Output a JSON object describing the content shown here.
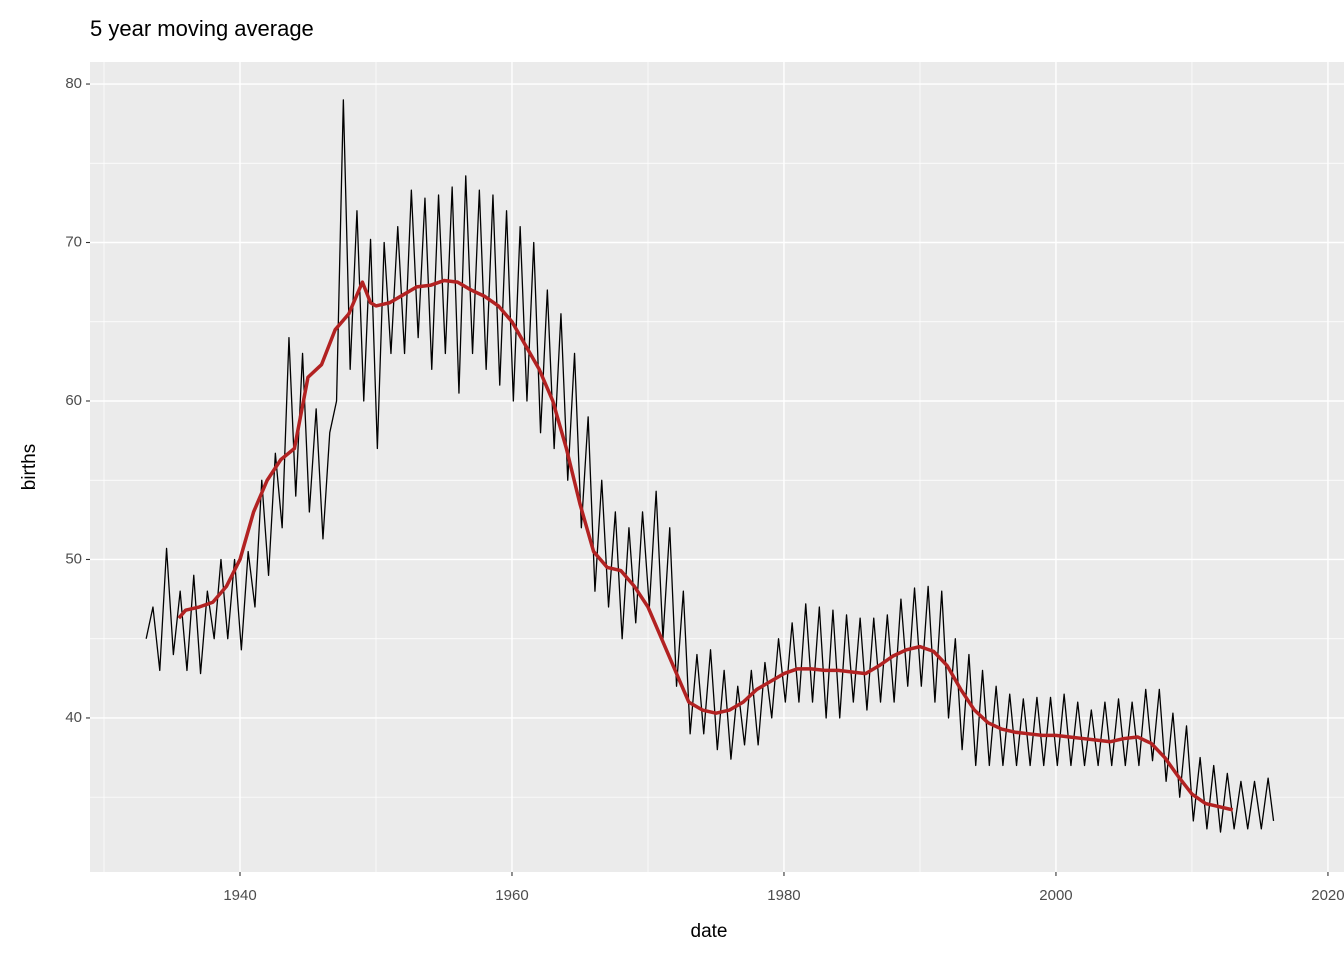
{
  "chart_data": {
    "type": "line",
    "title": "5 year moving average",
    "x_label": "date",
    "y_label": "births",
    "xlim": [
      1928.97,
      2021.18
    ],
    "ylim": [
      30.28,
      81.39
    ],
    "xticks": [
      1940,
      1960,
      1980,
      2000,
      2020
    ],
    "yticks": [
      40,
      50,
      60,
      70,
      80
    ],
    "grid": true,
    "series": [
      {
        "color": "#000000",
        "x": [
          1933.1,
          1933.6,
          1934.1,
          1934.6,
          1935.1,
          1935.6,
          1936.1,
          1936.6,
          1937.1,
          1937.6,
          1938.1,
          1938.6,
          1939.1,
          1939.6,
          1940.1,
          1940.6,
          1941.1,
          1941.6,
          1942.1,
          1942.6,
          1943.1,
          1943.6,
          1944.1,
          1944.6,
          1945.1,
          1945.6,
          1946.1,
          1946.6,
          1947.1,
          1947.6,
          1948.1,
          1948.6,
          1949.1,
          1949.6,
          1950.1,
          1950.6,
          1951.1,
          1951.6,
          1952.1,
          1952.6,
          1953.1,
          1953.6,
          1954.1,
          1954.6,
          1955.1,
          1955.6,
          1956.1,
          1956.6,
          1957.1,
          1957.6,
          1958.1,
          1958.6,
          1959.1,
          1959.6,
          1960.1,
          1960.6,
          1961.1,
          1961.6,
          1962.1,
          1962.6,
          1963.1,
          1963.6,
          1964.1,
          1964.6,
          1965.1,
          1965.6,
          1966.1,
          1966.6,
          1967.1,
          1967.6,
          1968.1,
          1968.6,
          1969.1,
          1969.6,
          1970.1,
          1970.6,
          1971.1,
          1971.6,
          1972.1,
          1972.6,
          1973.1,
          1973.6,
          1974.1,
          1974.6,
          1975.1,
          1975.6,
          1976.1,
          1976.6,
          1977.1,
          1977.6,
          1978.1,
          1978.6,
          1979.1,
          1979.6,
          1980.1,
          1980.6,
          1981.1,
          1981.6,
          1982.1,
          1982.6,
          1983.1,
          1983.6,
          1984.1,
          1984.6,
          1985.1,
          1985.6,
          1986.1,
          1986.6,
          1987.1,
          1987.6,
          1988.1,
          1988.6,
          1989.1,
          1989.6,
          1990.1,
          1990.6,
          1991.1,
          1991.6,
          1992.1,
          1992.6,
          1993.1,
          1993.6,
          1994.1,
          1994.6,
          1995.1,
          1995.6,
          1996.1,
          1996.6,
          1997.1,
          1997.6,
          1998.1,
          1998.6,
          1999.1,
          1999.6,
          2000.1,
          2000.6,
          2001.1,
          2001.6,
          2002.1,
          2002.6,
          2003.1,
          2003.6,
          2004.1,
          2004.6,
          2005.1,
          2005.6,
          2006.1,
          2006.6,
          2007.1,
          2007.6,
          2008.1,
          2008.6,
          2009.1,
          2009.6,
          2010.1,
          2010.6,
          2011.1,
          2011.6,
          2012.1,
          2012.6,
          2013.1,
          2013.6,
          2014.1,
          2014.6,
          2015.1,
          2015.6,
          2016.0
        ],
        "values": [
          45,
          47,
          43,
          50.7,
          44,
          48,
          43,
          49,
          42.8,
          48,
          45,
          50,
          45,
          50,
          44.3,
          50.5,
          47,
          55,
          49,
          56.7,
          52,
          64,
          54,
          63,
          53,
          59.5,
          51.3,
          58,
          60,
          79,
          62,
          72,
          60,
          70.2,
          57,
          70,
          63,
          71,
          63,
          73.3,
          64,
          72.8,
          62,
          73,
          63,
          73.5,
          60.5,
          74.2,
          63,
          73.3,
          62,
          73,
          61,
          72,
          60,
          71,
          60,
          70,
          58,
          67,
          57,
          65.5,
          55,
          63,
          52,
          59,
          48,
          55,
          47,
          53,
          45,
          52,
          46,
          53,
          47,
          54.3,
          45,
          52,
          42,
          48,
          39,
          44,
          39,
          44.3,
          38,
          43,
          37.4,
          42,
          38.3,
          43,
          38.3,
          43.5,
          40,
          45,
          41,
          46,
          41,
          47.2,
          41,
          47,
          40,
          46.8,
          40,
          46.5,
          41,
          46.3,
          40.5,
          46.3,
          41,
          46.5,
          41,
          47.5,
          42,
          48.2,
          42,
          48.3,
          41,
          48,
          40,
          45,
          38,
          44,
          37,
          43,
          37,
          42,
          37,
          41.5,
          37,
          41.2,
          37,
          41.3,
          37,
          41.3,
          37,
          41.5,
          37,
          41,
          37,
          40.5,
          37,
          41,
          37,
          41.2,
          37,
          41,
          37,
          41.8,
          37.3,
          41.8,
          36,
          40.3,
          35,
          39.5,
          33.5,
          37.5,
          33,
          37,
          32.8,
          36.5,
          33,
          36,
          33,
          36,
          33,
          36.2,
          33.5
        ]
      },
      {
        "color": "#b22222",
        "x": [
          1935.5,
          1936,
          1937,
          1938,
          1939,
          1940,
          1941,
          1942,
          1943,
          1944,
          1945,
          1946,
          1947,
          1948,
          1949,
          1949.6,
          1950,
          1951,
          1952,
          1953,
          1954,
          1955,
          1956,
          1957,
          1958,
          1959,
          1960,
          1961,
          1962,
          1963,
          1964,
          1965,
          1966,
          1967,
          1968,
          1969,
          1970,
          1971,
          1972,
          1973,
          1974,
          1975,
          1976,
          1977,
          1978,
          1979,
          1980,
          1981,
          1982,
          1983,
          1984,
          1985,
          1986,
          1987,
          1988,
          1989,
          1990,
          1991,
          1992,
          1993,
          1994,
          1995,
          1996,
          1997,
          1998,
          1999,
          2000,
          2001,
          2002,
          2003,
          2004,
          2005,
          2006,
          2007,
          2008,
          2009,
          2010,
          2011,
          2012,
          2013
        ],
        "values": [
          46.3,
          46.8,
          47,
          47.3,
          48.3,
          50,
          53,
          55,
          56.3,
          57,
          61.5,
          62.3,
          64.5,
          65.5,
          67.5,
          66.2,
          66,
          66.2,
          66.7,
          67.2,
          67.3,
          67.6,
          67.5,
          67,
          66.6,
          66,
          65,
          63.5,
          62,
          60,
          57,
          53.5,
          50.5,
          49.5,
          49.3,
          48.3,
          47,
          45,
          43,
          41,
          40.5,
          40.3,
          40.5,
          41,
          41.8,
          42.3,
          42.8,
          43.1,
          43.1,
          43,
          43,
          42.9,
          42.8,
          43.3,
          43.9,
          44.3,
          44.5,
          44.2,
          43.3,
          41.8,
          40.5,
          39.7,
          39.3,
          39.1,
          39,
          38.9,
          38.9,
          38.8,
          38.7,
          38.6,
          38.5,
          38.7,
          38.8,
          38.4,
          37.5,
          36.3,
          35.2,
          34.6,
          34.4,
          34.2
        ]
      }
    ]
  }
}
